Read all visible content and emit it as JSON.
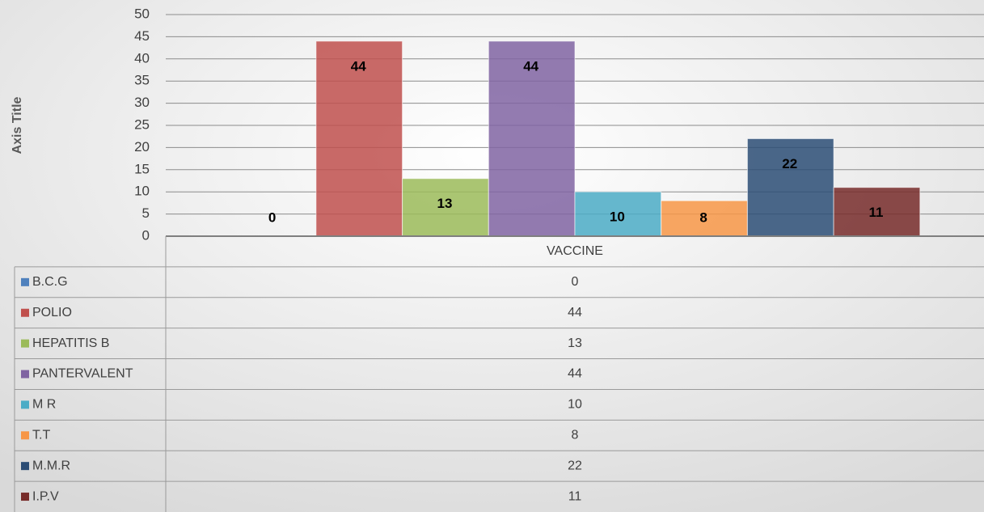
{
  "chart_data": {
    "type": "bar",
    "y_axis_label": "Axis Title",
    "categories": [
      "VACCINE"
    ],
    "series": [
      {
        "name": "B.C.G",
        "color": "#4f81bd",
        "values": [
          0
        ]
      },
      {
        "name": "POLIO",
        "color": "#c0504d",
        "values": [
          44
        ]
      },
      {
        "name": "HEPATITIS B",
        "color": "#9bbb59",
        "values": [
          13
        ]
      },
      {
        "name": "PANTERVALENT",
        "color": "#8064a2",
        "values": [
          44
        ]
      },
      {
        "name": "M R",
        "color": "#4bacc6",
        "values": [
          10
        ]
      },
      {
        "name": "T.T",
        "color": "#f79646",
        "values": [
          8
        ]
      },
      {
        "name": "M.M.R",
        "color": "#2c4d75",
        "values": [
          22
        ]
      },
      {
        "name": "I.P.V",
        "color": "#772c2a",
        "values": [
          11
        ]
      }
    ],
    "ylim": [
      0,
      50
    ],
    "yticks": [
      0,
      5,
      10,
      15,
      20,
      25,
      30,
      35,
      40,
      45,
      50
    ],
    "grid": true,
    "data_table": true
  }
}
